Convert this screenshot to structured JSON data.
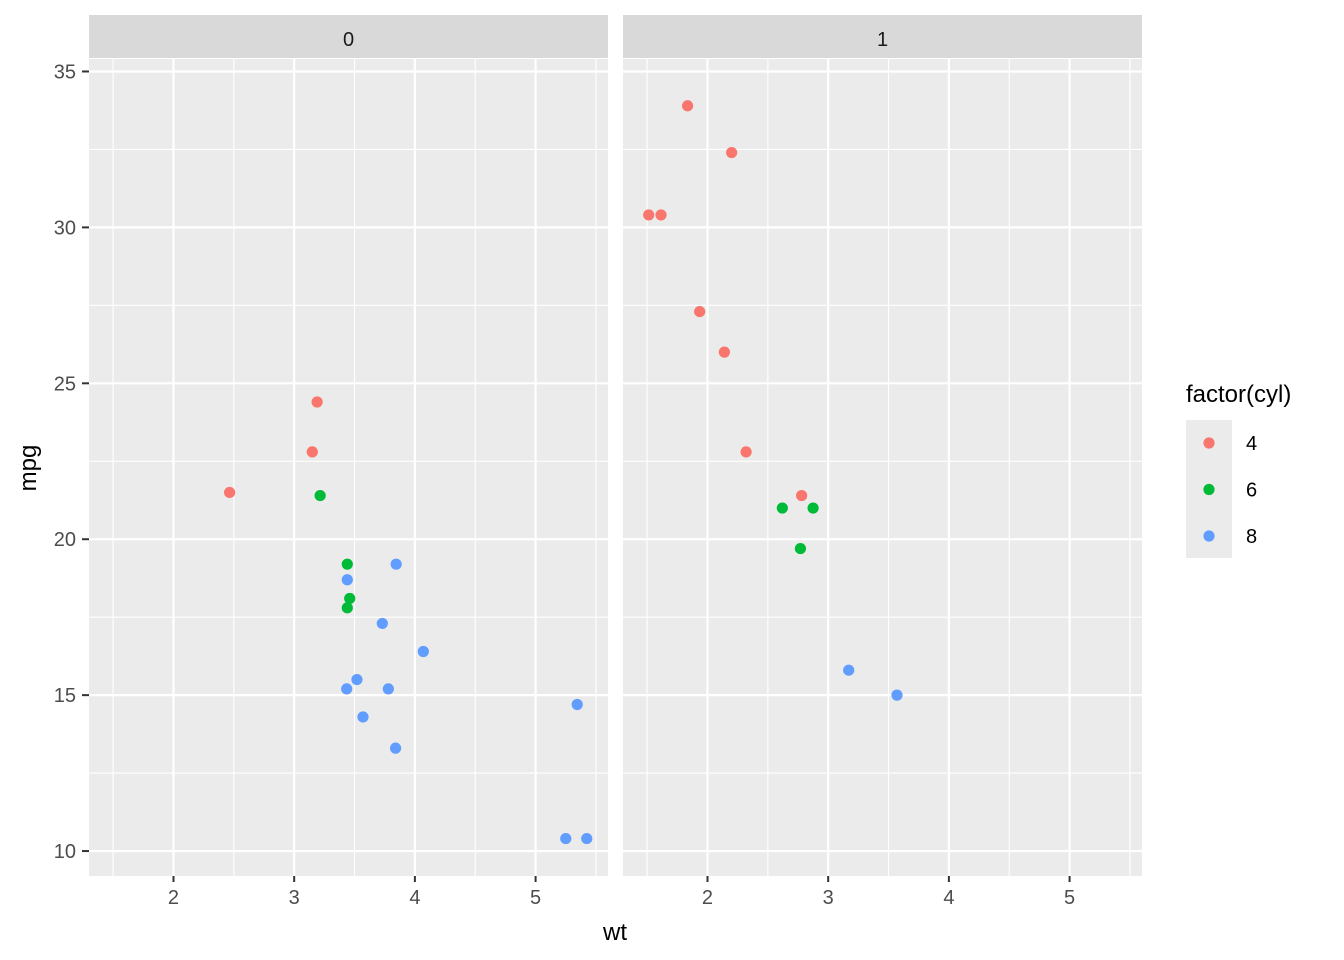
{
  "chart_data": {
    "type": "scatter",
    "facet_var": "am",
    "xlabel": "wt",
    "ylabel": "mpg",
    "xlim": [
      1.3,
      5.6
    ],
    "ylim": [
      9.2,
      35.4
    ],
    "x_ticks": [
      2,
      3,
      4,
      5
    ],
    "y_ticks": [
      10,
      15,
      20,
      25,
      30,
      35
    ],
    "grid": true,
    "legend": {
      "title": "factor(cyl)",
      "position": "right",
      "entries": [
        {
          "label": "4",
          "color": "#F8766D"
        },
        {
          "label": "6",
          "color": "#00BA38"
        },
        {
          "label": "8",
          "color": "#619CFF"
        }
      ]
    },
    "panels": [
      {
        "strip": "0",
        "points": [
          {
            "x": 2.465,
            "y": 21.5,
            "cyl": "4"
          },
          {
            "x": 3.19,
            "y": 24.4,
            "cyl": "4"
          },
          {
            "x": 3.15,
            "y": 22.8,
            "cyl": "4"
          },
          {
            "x": 3.215,
            "y": 21.4,
            "cyl": "6"
          },
          {
            "x": 3.44,
            "y": 19.2,
            "cyl": "6"
          },
          {
            "x": 3.46,
            "y": 18.1,
            "cyl": "6"
          },
          {
            "x": 3.44,
            "y": 17.8,
            "cyl": "6"
          },
          {
            "x": 3.44,
            "y": 18.7,
            "cyl": "8"
          },
          {
            "x": 3.845,
            "y": 19.2,
            "cyl": "8"
          },
          {
            "x": 3.73,
            "y": 17.3,
            "cyl": "8"
          },
          {
            "x": 4.07,
            "y": 16.4,
            "cyl": "8"
          },
          {
            "x": 3.52,
            "y": 15.5,
            "cyl": "8"
          },
          {
            "x": 3.435,
            "y": 15.2,
            "cyl": "8"
          },
          {
            "x": 3.78,
            "y": 15.2,
            "cyl": "8"
          },
          {
            "x": 3.57,
            "y": 14.3,
            "cyl": "8"
          },
          {
            "x": 3.84,
            "y": 13.3,
            "cyl": "8"
          },
          {
            "x": 5.345,
            "y": 14.7,
            "cyl": "8"
          },
          {
            "x": 5.25,
            "y": 10.4,
            "cyl": "8"
          },
          {
            "x": 5.424,
            "y": 10.4,
            "cyl": "8"
          }
        ]
      },
      {
        "strip": "1",
        "points": [
          {
            "x": 1.835,
            "y": 33.9,
            "cyl": "4"
          },
          {
            "x": 2.2,
            "y": 32.4,
            "cyl": "4"
          },
          {
            "x": 1.513,
            "y": 30.4,
            "cyl": "4"
          },
          {
            "x": 1.615,
            "y": 30.4,
            "cyl": "4"
          },
          {
            "x": 1.935,
            "y": 27.3,
            "cyl": "4"
          },
          {
            "x": 2.14,
            "y": 26.0,
            "cyl": "4"
          },
          {
            "x": 2.32,
            "y": 22.8,
            "cyl": "4"
          },
          {
            "x": 2.78,
            "y": 21.4,
            "cyl": "4"
          },
          {
            "x": 2.62,
            "y": 21.0,
            "cyl": "6"
          },
          {
            "x": 2.875,
            "y": 21.0,
            "cyl": "6"
          },
          {
            "x": 2.77,
            "y": 19.7,
            "cyl": "6"
          },
          {
            "x": 3.17,
            "y": 15.8,
            "cyl": "8"
          },
          {
            "x": 3.57,
            "y": 15.0,
            "cyl": "8"
          }
        ]
      }
    ]
  }
}
